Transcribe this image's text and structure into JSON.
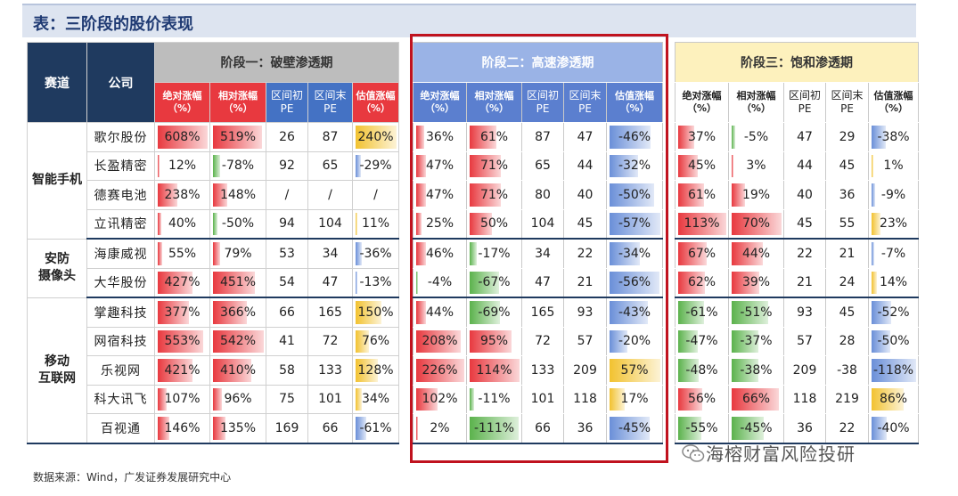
{
  "title": "表：三阶段的股价表现",
  "source": "数据来源：Wind，广发证券发展研究中心",
  "watermark": "海榕财富风险投研",
  "colors": {
    "pos": "#e8393f",
    "neg": "#5bb24c",
    "val_pos": "#f2c230",
    "val_neg": "#6a8fd8",
    "stage1": "#bdbdbd",
    "stage2": "#9ab3e6",
    "stage3": "#fdf1bd",
    "dark": "#1f3a5f"
  },
  "header": {
    "sector": "赛道",
    "company": "公司",
    "stage1": "阶段一：破壁渗透期",
    "stage2": "阶段二：高速渗透期",
    "stage3": "阶段三：饱和渗透期",
    "cols": [
      {
        "l1": "绝对涨幅",
        "l2": "（%）"
      },
      {
        "l1": "相对涨幅",
        "l2": "（%）"
      },
      {
        "l1": "区间初",
        "l2": "PE"
      },
      {
        "l1": "区间末",
        "l2": "PE"
      },
      {
        "l1": "估值涨幅",
        "l2": "（%）"
      }
    ]
  },
  "sectors": [
    {
      "name1": "智能手机",
      "name2": "",
      "rows": 4
    },
    {
      "name1": "安防",
      "name2": "摄像头",
      "rows": 2
    },
    {
      "name1": "移动",
      "name2": "互联网",
      "rows": 5
    }
  ],
  "rows": [
    {
      "company": "歌尔股份",
      "s1": [
        "608%",
        "519%",
        "26",
        "87",
        "240%"
      ],
      "s2": [
        "36%",
        "61%",
        "87",
        "47",
        "-46%"
      ],
      "s3": [
        "37%",
        "-5%",
        "47",
        "29",
        "-38%"
      ]
    },
    {
      "company": "长盈精密",
      "s1": [
        "12%",
        "-78%",
        "92",
        "65",
        "-29%"
      ],
      "s2": [
        "47%",
        "71%",
        "65",
        "44",
        "-32%"
      ],
      "s3": [
        "45%",
        "3%",
        "44",
        "45",
        "1%"
      ]
    },
    {
      "company": "德赛电池",
      "s1": [
        "238%",
        "148%",
        "/",
        "/",
        "/"
      ],
      "s2": [
        "47%",
        "71%",
        "80",
        "40",
        "-50%"
      ],
      "s3": [
        "61%",
        "19%",
        "40",
        "36",
        "-9%"
      ]
    },
    {
      "company": "立讯精密",
      "s1": [
        "40%",
        "-50%",
        "94",
        "104",
        "11%"
      ],
      "s2": [
        "25%",
        "50%",
        "104",
        "45",
        "-57%"
      ],
      "s3": [
        "113%",
        "70%",
        "45",
        "55",
        "23%"
      ]
    },
    {
      "company": "海康威视",
      "s1": [
        "55%",
        "79%",
        "53",
        "34",
        "-36%"
      ],
      "s2": [
        "46%",
        "-17%",
        "34",
        "22",
        "-34%"
      ],
      "s3": [
        "67%",
        "44%",
        "22",
        "21",
        "-7%"
      ]
    },
    {
      "company": "大华股份",
      "s1": [
        "427%",
        "451%",
        "54",
        "47",
        "-13%"
      ],
      "s2": [
        "-4%",
        "-67%",
        "47",
        "21",
        "-56%"
      ],
      "s3": [
        "62%",
        "39%",
        "21",
        "24",
        "14%"
      ]
    },
    {
      "company": "掌趣科技",
      "s1": [
        "377%",
        "366%",
        "66",
        "165",
        "150%"
      ],
      "s2": [
        "44%",
        "-69%",
        "165",
        "93",
        "-43%"
      ],
      "s3": [
        "-61%",
        "-51%",
        "93",
        "45",
        "-52%"
      ]
    },
    {
      "company": "网宿科技",
      "s1": [
        "553%",
        "542%",
        "41",
        "72",
        "76%"
      ],
      "s2": [
        "208%",
        "95%",
        "72",
        "57",
        "-20%"
      ],
      "s3": [
        "-47%",
        "-37%",
        "57",
        "28",
        "-50%"
      ]
    },
    {
      "company": "乐视网",
      "s1": [
        "421%",
        "410%",
        "58",
        "133",
        "128%"
      ],
      "s2": [
        "226%",
        "114%",
        "133",
        "209",
        "57%"
      ],
      "s3": [
        "-48%",
        "-38%",
        "209",
        "-38",
        "-118%"
      ]
    },
    {
      "company": "科大讯飞",
      "s1": [
        "107%",
        "96%",
        "75",
        "101",
        "34%"
      ],
      "s2": [
        "102%",
        "-11%",
        "101",
        "118",
        "17%"
      ],
      "s3": [
        "56%",
        "66%",
        "118",
        "219",
        "86%"
      ]
    },
    {
      "company": "百视通",
      "s1": [
        "146%",
        "135%",
        "169",
        "66",
        "-61%"
      ],
      "s2": [
        "2%",
        "-111%",
        "66",
        "36",
        "-45%"
      ],
      "s3": [
        "-55%",
        "-45%",
        "36",
        "22",
        "-40%"
      ]
    }
  ]
}
